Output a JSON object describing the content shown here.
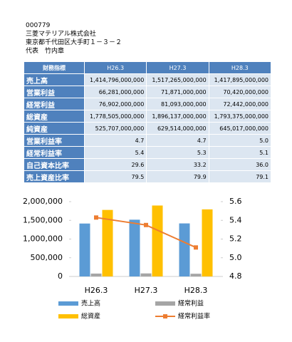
{
  "header": {
    "code": "000779",
    "company": "三菱マテリアル株式会社",
    "address": "東京都千代田区大手町１－３－２",
    "representative": "代表　竹内章"
  },
  "table": {
    "columns": [
      "財務指標",
      "H26.3",
      "H27.3",
      "H28.3"
    ],
    "rows": [
      [
        "売上高",
        "1,414,796,000,000",
        "1,517,265,000,000",
        "1,417,895,000,000"
      ],
      [
        "営業利益",
        "66,281,000,000",
        "71,871,000,000",
        "70,420,000,000"
      ],
      [
        "経常利益",
        "76,902,000,000",
        "81,093,000,000",
        "72,442,000,000"
      ],
      [
        "総資産",
        "1,778,505,000,000",
        "1,896,137,000,000",
        "1,793,375,000,000"
      ],
      [
        "純資産",
        "525,707,000,000",
        "629,514,000,000",
        "645,017,000,000"
      ],
      [
        "営業利益率",
        "4.7",
        "4.7",
        "5.0"
      ],
      [
        "経常利益率",
        "5.4",
        "5.3",
        "5.1"
      ],
      [
        "自己資本比率",
        "29.6",
        "33.2",
        "36.0"
      ],
      [
        "売上資産比率",
        "79.5",
        "79.9",
        "79.1"
      ]
    ]
  },
  "chart_data": {
    "type": "bar",
    "categories": [
      "H26.3",
      "H27.3",
      "H28.3"
    ],
    "series": [
      {
        "name": "売上高",
        "color": "#5b9bd5",
        "values": [
          1414796,
          1517265,
          1417895
        ]
      },
      {
        "name": "経常利益",
        "color": "#a5a5a5",
        "values": [
          76902,
          81093,
          72442
        ]
      },
      {
        "name": "総資産",
        "color": "#ffc000",
        "values": [
          1778505,
          1896137,
          1793375
        ]
      },
      {
        "name": "経常利益率",
        "color": "#ed7d31",
        "type": "line",
        "axis": "y2",
        "values": [
          5.43,
          5.35,
          5.11
        ]
      }
    ],
    "ylim": [
      0,
      2000000
    ],
    "yticks": [
      0,
      {
        "value": 500000,
        "label": "500,000"
      },
      {
        "value": 1000000,
        "label": "1,000,000"
      },
      {
        "value": 1500000,
        "label": "1,500,000"
      },
      {
        "value": 2000000,
        "label": "2,000,000"
      }
    ],
    "y2lim": [
      4.8,
      5.6
    ],
    "y2ticks": [
      4.8,
      {
        "value": 5,
        "label": "5.0"
      },
      5.2,
      5.4,
      5.6
    ]
  }
}
